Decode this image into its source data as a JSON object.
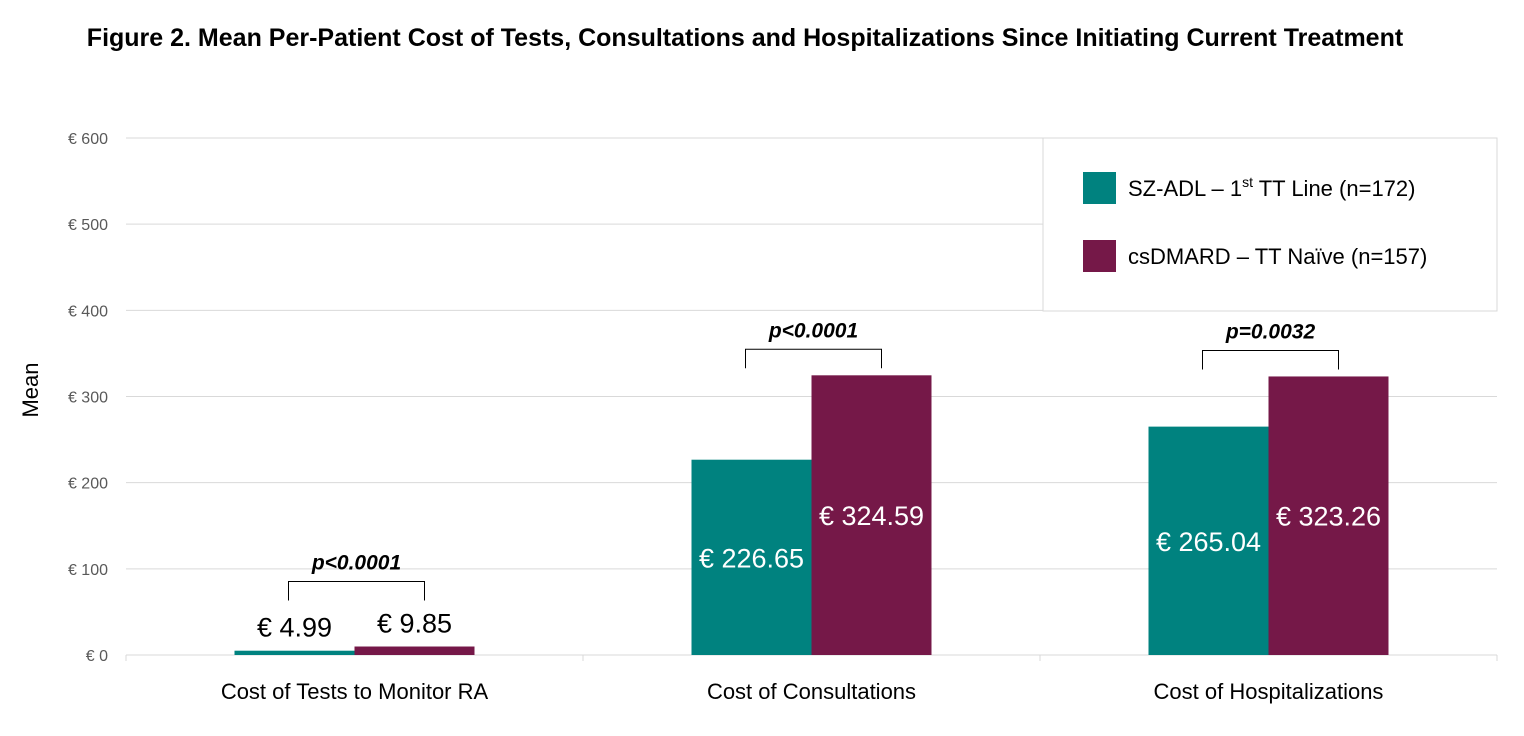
{
  "chart_data": {
    "type": "bar",
    "title": "Figure 2. Mean Per-Patient Cost of Tests, Consultations and Hospitalizations Since Initiating Current Treatment",
    "xlabel": "",
    "ylabel": "Mean",
    "ylim": [
      0,
      600
    ],
    "yticks": [
      0,
      100,
      200,
      300,
      400,
      500,
      600
    ],
    "ytick_labels": [
      "€ 0",
      "€ 100",
      "€ 200",
      "€ 300",
      "€ 400",
      "€ 500",
      "€ 600"
    ],
    "grid": true,
    "legend_position": "top-right",
    "categories": [
      "Cost of Tests to Monitor RA",
      "Cost of Consultations",
      "Cost of Hospitalizations"
    ],
    "series": [
      {
        "name": "SZ-ADL – 1st TT Line (n=172)",
        "name_parts": [
          "SZ-ADL – 1",
          "st",
          " TT Line (n=172)"
        ],
        "color": "#00827F",
        "values": [
          4.99,
          226.65,
          265.04
        ],
        "labels": [
          "€ 4.99",
          "€ 226.65",
          "€ 265.04"
        ]
      },
      {
        "name": "csDMARD – TT Naïve (n=157)",
        "name_parts": [
          "csDMARD – TT Naïve (n=157)",
          "",
          ""
        ],
        "color": "#751848",
        "values": [
          9.85,
          324.59,
          323.26
        ],
        "labels": [
          "€ 9.85",
          "€ 324.59",
          "€ 323.26"
        ]
      }
    ],
    "annotations": [
      "p<0.0001",
      "p<0.0001",
      "p=0.0032"
    ]
  }
}
